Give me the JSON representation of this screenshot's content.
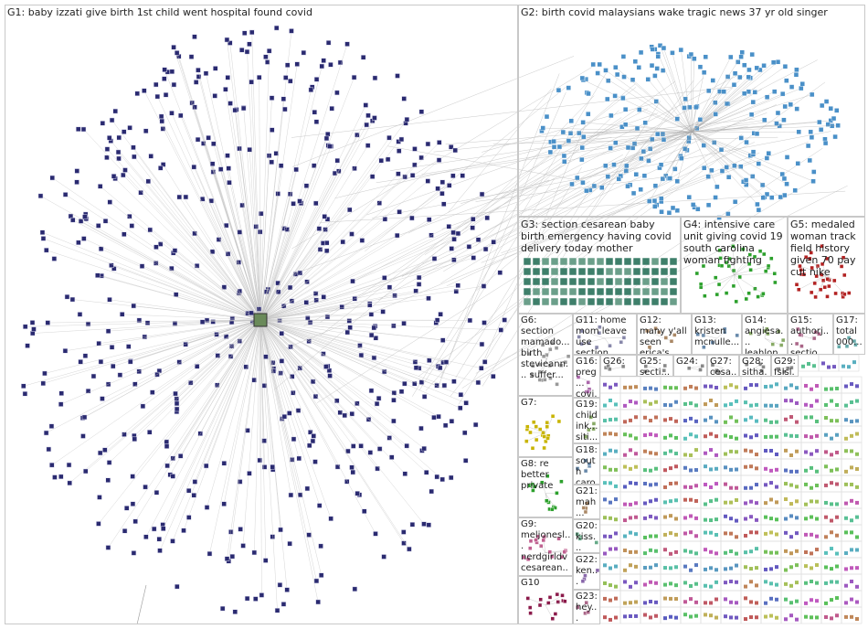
{
  "groups": [
    "G1: baby izzati give birth 1st child went hospital found covid",
    "G2: birth covid malaysians wake tragic news 37 yr old singer",
    "G3: section cesarean baby birth emergency having covid delivery today mother",
    "G4: intensive care unit giving covid 19 south carolina woman fighting",
    "G5: medaled woman track field history given 70 pay cut nike",
    "G6: section mamado... birth stevieann... suffer...",
    "G7:",
    "G8: re better private",
    "G9: meljonesl... nerdgirldv cesarean...",
    "G10",
    "G11: home mom leave use section...",
    "G12: many y'all seen erica's...",
    "G13: kristen mcnulle...",
    "G14: angiesa... leahlon...",
    "G15: authorj... sectio...",
    "G17: total 000...",
    "G16: preg... covi...",
    "G26:",
    "G25: secti...",
    "G24:",
    "G27: cesa...",
    "G28: sitha...",
    "G29: fslsl...",
    "G19: child ink... siti...",
    "G18: south caro...",
    "G21: mah...",
    "G20: kiss...",
    "G22: ken...",
    "G23: hey..."
  ]
}
